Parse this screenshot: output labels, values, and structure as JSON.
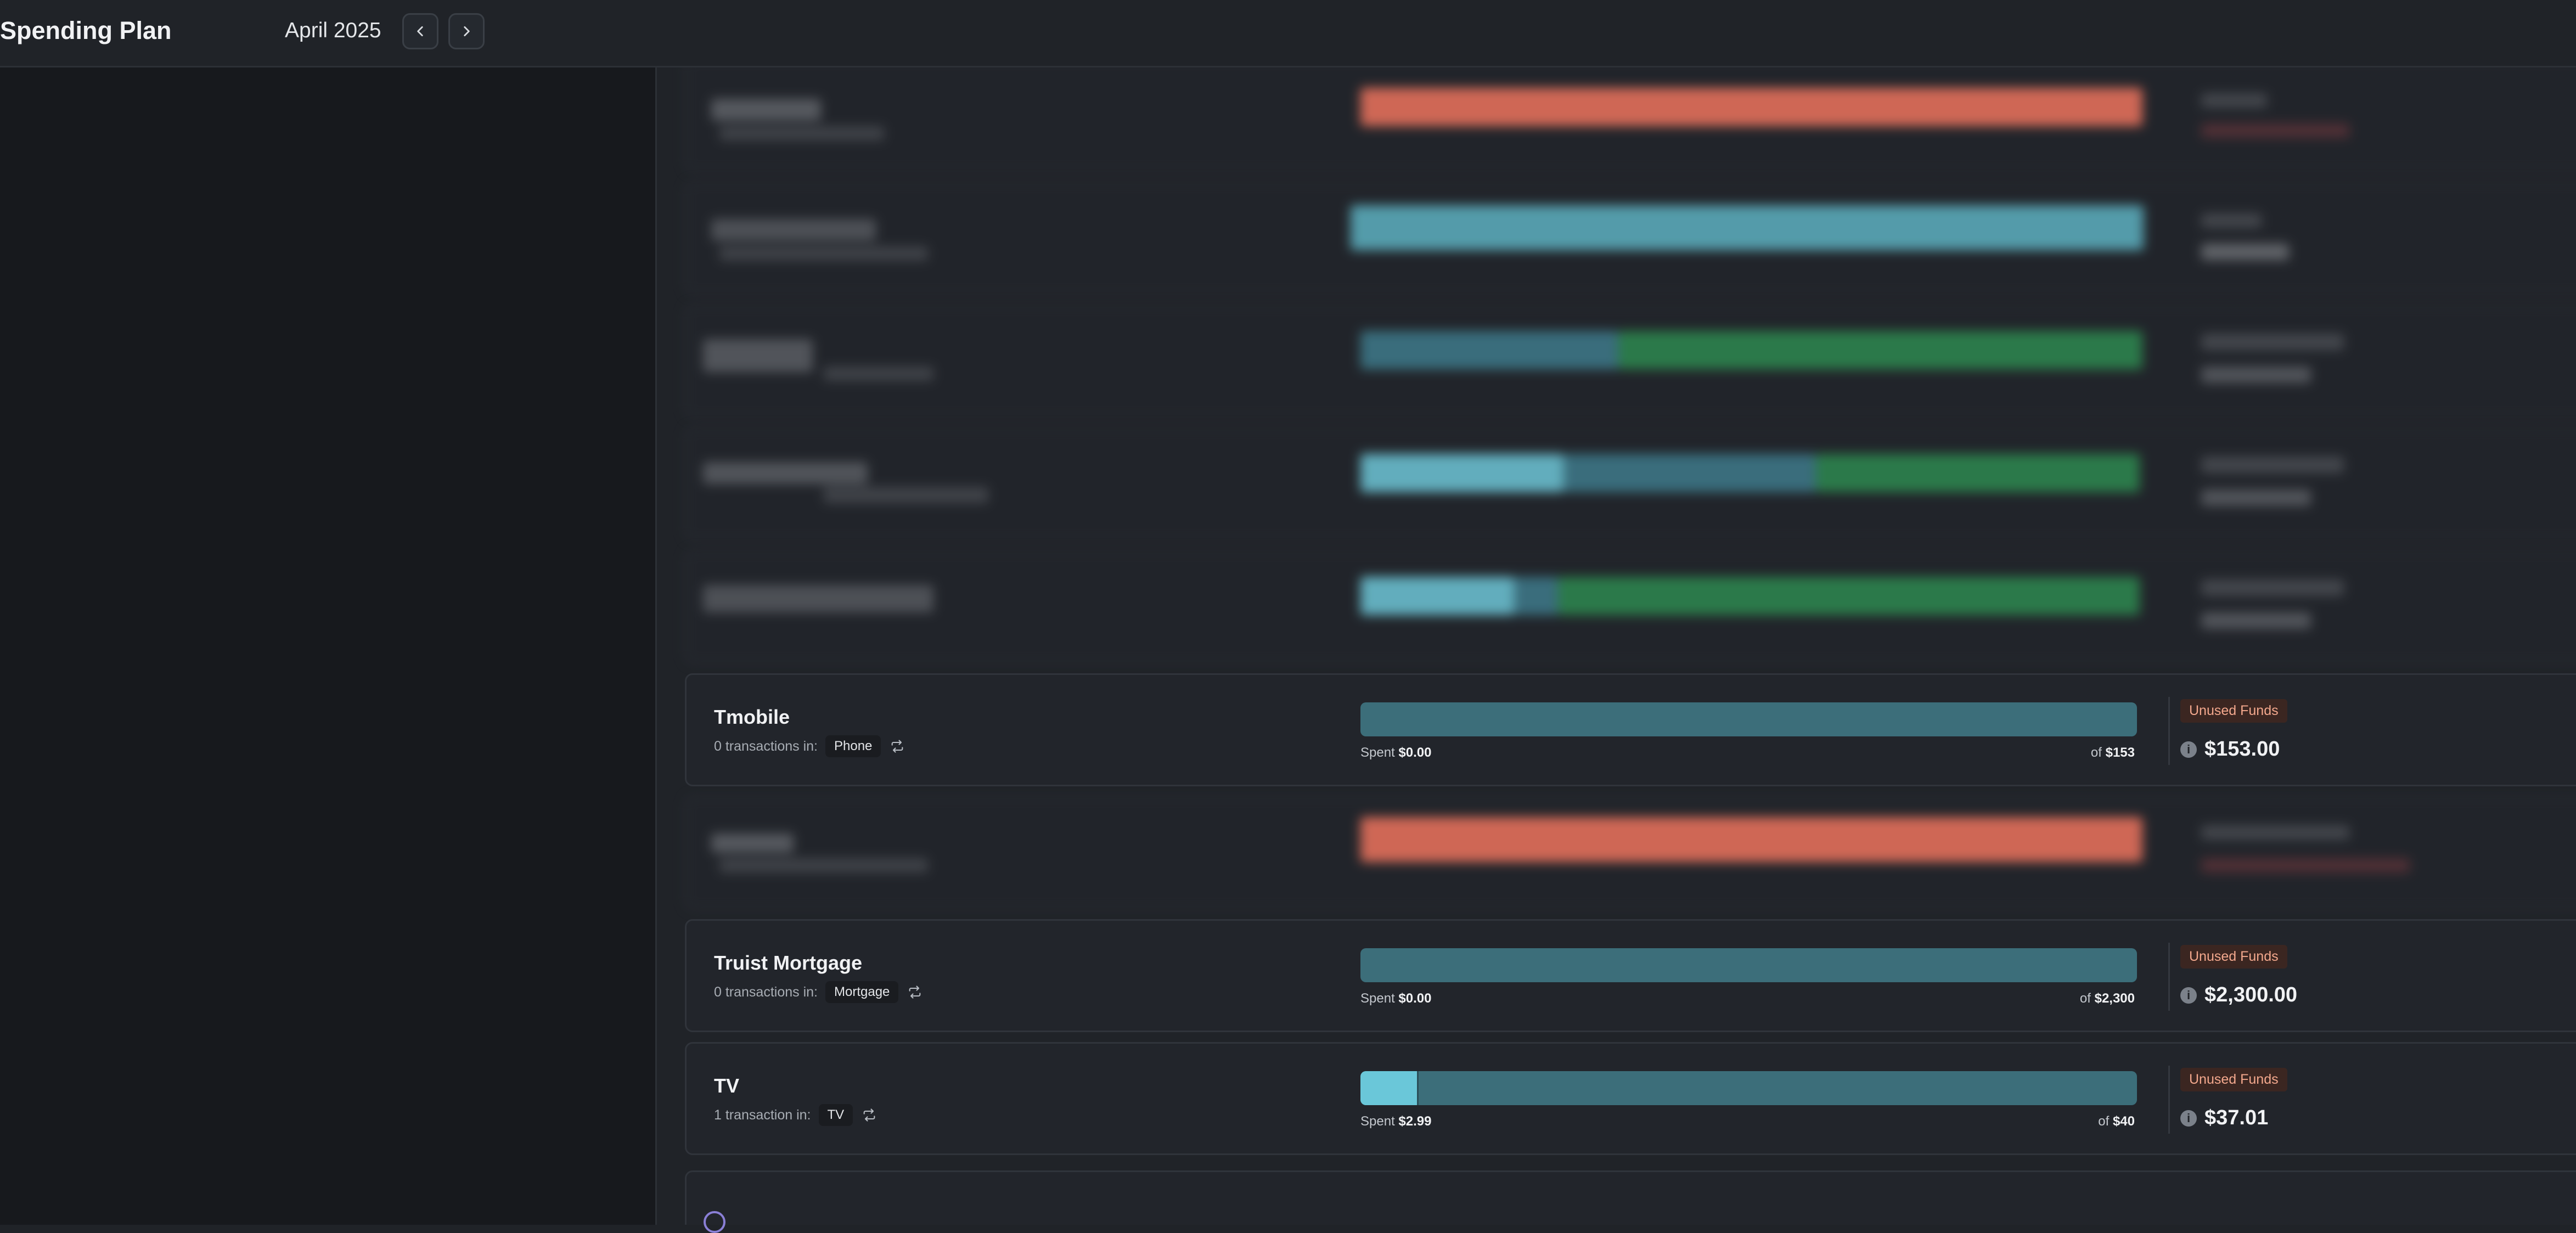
{
  "header": {
    "app_title": "Spending Plan",
    "month": "April 2025",
    "prev_icon": "chevron-left-icon",
    "next_icon": "chevron-right-icon"
  },
  "colors": {
    "teal_track": "#3c6e7a",
    "teal_fill": "#6ac7d9",
    "over_red": "#f56b55",
    "green": "#2a8a4e",
    "badge_bg": "#3b2621",
    "badge_text": "#f3a88d"
  },
  "rows": [
    {
      "name": "Tmobile",
      "transactions_text": "0 transactions in:",
      "category": "Phone",
      "spent_label": "Spent",
      "spent_value": "$0.00",
      "of_label": "of",
      "budget": "$153",
      "progress_percent": 0,
      "badge": "Unused Funds",
      "amount": "$153.00"
    },
    {
      "name": "Truist Mortgage",
      "transactions_text": "0 transactions in:",
      "category": "Mortgage",
      "spent_label": "Spent",
      "spent_value": "$0.00",
      "of_label": "of",
      "budget": "$2,300",
      "progress_percent": 0,
      "badge": "Unused Funds",
      "amount": "$2,300.00"
    },
    {
      "name": "TV",
      "transactions_text": "1 transaction in:",
      "category": "TV",
      "spent_label": "Spent",
      "spent_value": "$2.99",
      "of_label": "of",
      "budget": "$40",
      "progress_percent": 7.5,
      "badge": "Unused Funds",
      "amount": "$37.01"
    }
  ]
}
